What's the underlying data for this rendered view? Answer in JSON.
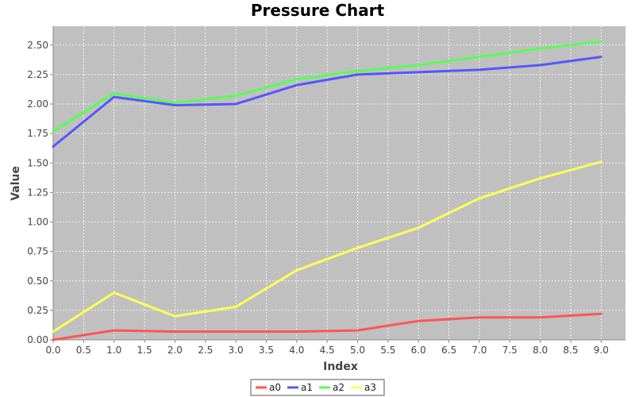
{
  "chart_data": {
    "type": "line",
    "title": "Pressure Chart",
    "xlabel": "Index",
    "ylabel": "Value",
    "xlim": [
      0,
      9.4
    ],
    "ylim": [
      0,
      2.66
    ],
    "x_ticks": [
      0.0,
      0.5,
      1.0,
      1.5,
      2.0,
      2.5,
      3.0,
      3.5,
      4.0,
      4.5,
      5.0,
      5.5,
      6.0,
      6.5,
      7.0,
      7.5,
      8.0,
      8.5,
      9.0
    ],
    "x_tick_labels": [
      "0.0",
      "0.5",
      "1.0",
      "1.5",
      "2.0",
      "2.5",
      "3.0",
      "3.5",
      "4.0",
      "4.5",
      "5.0",
      "5.5",
      "6.0",
      "6.5",
      "7.0",
      "7.5",
      "8.0",
      "8.5",
      "9.0"
    ],
    "y_ticks": [
      0.0,
      0.25,
      0.5,
      0.75,
      1.0,
      1.25,
      1.5,
      1.75,
      2.0,
      2.25,
      2.5
    ],
    "y_tick_labels": [
      "0.00",
      "0.25",
      "0.50",
      "0.75",
      "1.00",
      "1.25",
      "1.50",
      "1.75",
      "2.00",
      "2.25",
      "2.50"
    ],
    "grid": true,
    "legend_position": "bottom",
    "plot_background": "#c0c0c0",
    "x": [
      0,
      1,
      2,
      3,
      4,
      5,
      6,
      7,
      8,
      9
    ],
    "series": [
      {
        "name": "a0",
        "color": "#ff5555",
        "values": [
          0.0,
          0.08,
          0.07,
          0.07,
          0.07,
          0.08,
          0.16,
          0.19,
          0.19,
          0.22
        ]
      },
      {
        "name": "a1",
        "color": "#5555ff",
        "values": [
          1.64,
          2.06,
          1.99,
          2.0,
          2.16,
          2.25,
          2.27,
          2.29,
          2.33,
          2.4
        ]
      },
      {
        "name": "a2",
        "color": "#55ff55",
        "values": [
          1.77,
          2.09,
          2.01,
          2.07,
          2.21,
          2.28,
          2.33,
          2.4,
          2.47,
          2.53
        ]
      },
      {
        "name": "a3",
        "color": "#ffff55",
        "values": [
          0.07,
          0.4,
          0.2,
          0.28,
          0.59,
          0.78,
          0.95,
          1.2,
          1.37,
          1.51
        ]
      }
    ]
  }
}
